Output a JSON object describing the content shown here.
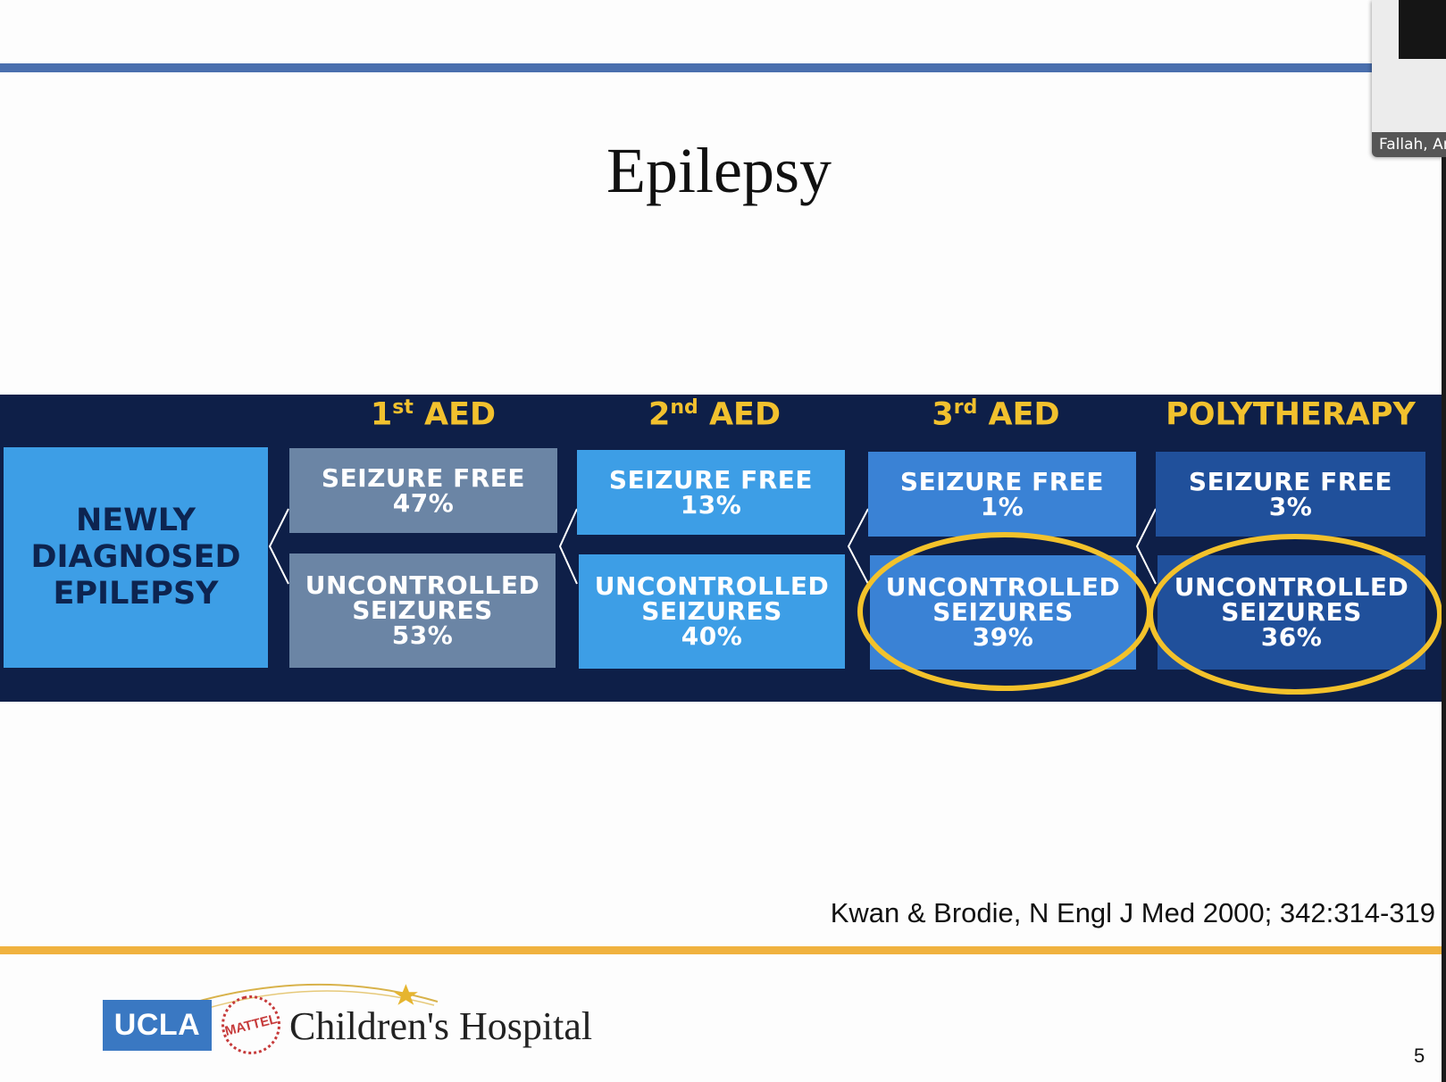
{
  "slide": {
    "title": "Epilepsy",
    "citation": "Kwan & Brodie, N Engl J Med 2000; 342:314-319",
    "page_number": "5"
  },
  "diagram": {
    "start": {
      "lines": [
        "NEWLY",
        "DIAGNOSED",
        "EPILEPSY"
      ]
    },
    "columns": [
      {
        "head_num": "1",
        "head_sup": "st",
        "head_rest": " AED",
        "free_label": "SEIZURE FREE",
        "free_pct": "47%",
        "unc_l1": "UNCONTROLLED",
        "unc_l2": "SEIZURES",
        "unc_pct": "53%",
        "color": "#6b85a5"
      },
      {
        "head_num": "2",
        "head_sup": "nd",
        "head_rest": " AED",
        "free_label": "SEIZURE FREE",
        "free_pct": "13%",
        "unc_l1": "UNCONTROLLED",
        "unc_l2": "SEIZURES",
        "unc_pct": "40%",
        "color": "#3d9ee6"
      },
      {
        "head_num": "3",
        "head_sup": "rd",
        "head_rest": "  AED",
        "free_label": "SEIZURE FREE",
        "free_pct": "1%",
        "unc_l1": "UNCONTROLLED",
        "unc_l2": "SEIZURES",
        "unc_pct": "39%",
        "color": "#3a82d5"
      },
      {
        "head_num": "",
        "head_sup": "",
        "head_rest": "POLYTHERAPY",
        "free_label": "SEIZURE FREE",
        "free_pct": "3%",
        "unc_l1": "UNCONTROLLED",
        "unc_l2": "SEIZURES",
        "unc_pct": "36%",
        "color": "#20509b"
      }
    ],
    "header_color": "#f2c12e",
    "highlight_color": "#f3c22b",
    "panel_color": "#0e1f48"
  },
  "footer": {
    "ucla": "UCLA",
    "mattel": "MATTEL",
    "hospital": "Children's Hospital"
  },
  "video": {
    "participant": "Fallah, Ar"
  }
}
